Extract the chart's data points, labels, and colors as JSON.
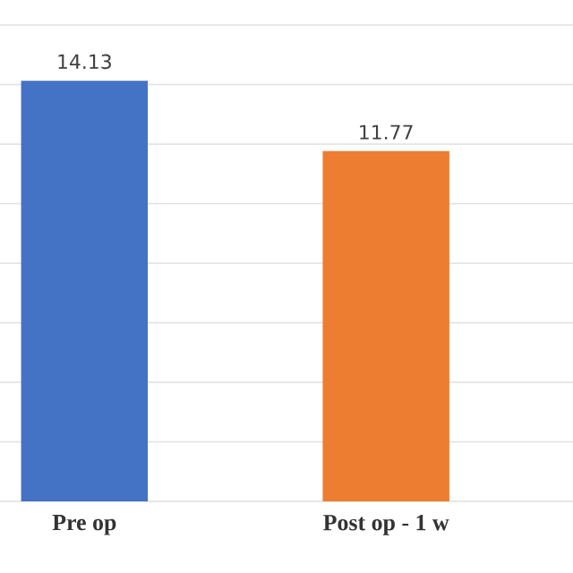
{
  "chart_data": {
    "type": "bar",
    "categories": [
      "Pre op",
      "Post op - 1 w"
    ],
    "values": [
      14.13,
      11.77
    ],
    "colors": [
      "#4472c4",
      "#ed7d31"
    ],
    "ylim": [
      0,
      16
    ],
    "yticks": [
      {
        "value": 0,
        "label": null
      },
      {
        "value": 2,
        "label": null
      },
      {
        "value": 4,
        "label": null
      },
      {
        "value": 6,
        "label": null
      },
      {
        "value": 8,
        "label": null
      },
      {
        "value": 10,
        "label": null
      },
      {
        "value": 12,
        "label": null
      },
      {
        "value": 14,
        "label": null
      },
      {
        "value": 16,
        "label": null
      }
    ],
    "grid": "y",
    "data_labels": true
  }
}
